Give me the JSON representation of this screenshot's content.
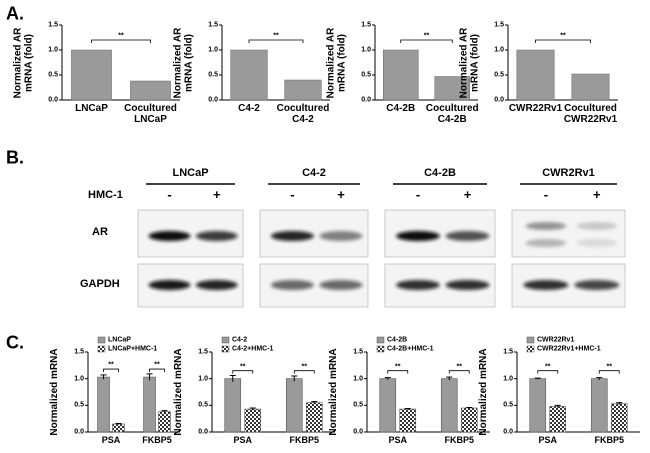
{
  "panels": [
    "A.",
    "B.",
    "C."
  ],
  "chart_data": [
    {
      "type": "bar",
      "ylabel": "Normalized AR\nmRNA (fold)",
      "categories": [
        "LNCaP",
        "Cocultured\nLNCaP"
      ],
      "values": [
        1.0,
        0.38
      ],
      "color": "#9a9a9a",
      "ylim": [
        0,
        1.5
      ],
      "yticks": [
        {
          "value": 0,
          "label": "0.0"
        },
        0.5,
        {
          "value": 1,
          "label": "1.0"
        },
        1.5
      ],
      "annotation": "**"
    },
    {
      "type": "bar",
      "ylabel": "Normalized AR\nmRNA (fold)",
      "categories": [
        "C4-2",
        "Cocultured\nC4-2"
      ],
      "values": [
        1.0,
        0.4
      ],
      "color": "#9a9a9a",
      "ylim": [
        0,
        1.5
      ],
      "yticks": [
        {
          "value": 0,
          "label": "0.0"
        },
        0.5,
        {
          "value": 1,
          "label": "1.0"
        },
        1.5
      ],
      "annotation": "**"
    },
    {
      "type": "bar",
      "ylabel": "Normalized AR\nmRNA (fold)",
      "categories": [
        "C4-2B",
        "Cocultured\nC4-2B"
      ],
      "values": [
        1.0,
        0.47
      ],
      "color": "#9a9a9a",
      "ylim": [
        0,
        1.5
      ],
      "yticks": [
        {
          "value": 0,
          "label": "0.0"
        },
        0.5,
        {
          "value": 1,
          "label": "1.0"
        },
        1.5
      ],
      "annotation": "**"
    },
    {
      "type": "bar",
      "ylabel": "Normalized AR\nmRNA (fold)",
      "categories": [
        "CWR22Rv1",
        "Cocultured\nCWR22Rv1"
      ],
      "values": [
        1.0,
        0.52
      ],
      "color": "#9a9a9a",
      "ylim": [
        0,
        1.5
      ],
      "yticks": [
        {
          "value": 0,
          "label": "0.0"
        },
        0.5,
        {
          "value": 1,
          "label": "1.0"
        },
        1.5
      ],
      "annotation": "**"
    },
    {
      "type": "grouped_bar",
      "ylabel": "Normalized mRNA",
      "categories": [
        "PSA",
        "FKBP5"
      ],
      "series": [
        {
          "name": "LNCaP",
          "color": "#9a9a9a",
          "values": [
            1.03,
            1.03
          ],
          "errors": [
            0.04,
            0.06
          ]
        },
        {
          "name": "LNCaP+HMC-1",
          "color": "#333333",
          "pattern": "checker",
          "values": [
            0.15,
            0.38
          ],
          "errors": [
            0.01,
            0.02
          ]
        }
      ],
      "ylim": [
        0,
        1.5
      ],
      "yticks": [
        {
          "value": 0,
          "label": "0.0"
        },
        0.5,
        {
          "value": 1,
          "label": "1.0"
        },
        1.5
      ],
      "annotations": [
        "**",
        "**"
      ]
    },
    {
      "type": "grouped_bar",
      "ylabel": "Normalized mRNA",
      "categories": [
        "PSA",
        "FKBP5"
      ],
      "series": [
        {
          "name": "C4-2",
          "color": "#9a9a9a",
          "values": [
            1.0,
            1.0
          ],
          "errors": [
            0.06,
            0.05
          ]
        },
        {
          "name": "C4-2+HMC-1",
          "color": "#333333",
          "pattern": "checker",
          "values": [
            0.43,
            0.55
          ],
          "errors": [
            0.02,
            0.02
          ]
        }
      ],
      "ylim": [
        0,
        1.5
      ],
      "yticks": [
        {
          "value": 0,
          "label": "0.0"
        },
        0.5,
        {
          "value": 1,
          "label": "1.0"
        },
        1.5
      ],
      "annotations": [
        "**",
        "**"
      ]
    },
    {
      "type": "grouped_bar",
      "ylabel": "Normalized mRNA",
      "categories": [
        "PSA",
        "FKBP5"
      ],
      "series": [
        {
          "name": "C4-2B",
          "color": "#9a9a9a",
          "values": [
            1.0,
            1.0
          ],
          "errors": [
            0.02,
            0.03
          ]
        },
        {
          "name": "C4-2B+HMC-1",
          "color": "#333333",
          "pattern": "checker",
          "values": [
            0.43,
            0.45
          ],
          "errors": [
            0.01,
            0.01
          ]
        }
      ],
      "ylim": [
        0,
        1.5
      ],
      "yticks": [
        {
          "value": 0,
          "label": "0.0"
        },
        0.5,
        {
          "value": 1,
          "label": "1.0"
        },
        1.5
      ],
      "annotations": [
        "**",
        "**"
      ]
    },
    {
      "type": "grouped_bar",
      "ylabel": "Normalized mRNA",
      "categories": [
        "PSA",
        "FKBP5"
      ],
      "series": [
        {
          "name": "CWR22Rv1",
          "color": "#9a9a9a",
          "values": [
            1.0,
            1.0
          ],
          "errors": [
            0.01,
            0.02
          ]
        },
        {
          "name": "CWR22Rv1+HMC-1",
          "color": "#333333",
          "pattern": "checker",
          "values": [
            0.48,
            0.53
          ],
          "errors": [
            0.02,
            0.02
          ]
        }
      ],
      "ylim": [
        0,
        1.5
      ],
      "yticks": [
        {
          "value": 0,
          "label": "0.0"
        },
        0.5,
        {
          "value": 1,
          "label": "1.0"
        },
        1.5
      ],
      "annotations": [
        "**",
        "**"
      ]
    }
  ],
  "blot": {
    "treatment_label": "HMC-1",
    "row_labels": [
      "AR",
      "GAPDH"
    ],
    "groups": [
      {
        "name": "LNCaP",
        "lanes": [
          "-",
          "+"
        ]
      },
      {
        "name": "C4-2",
        "lanes": [
          "-",
          "+"
        ]
      },
      {
        "name": "C4-2B",
        "lanes": [
          "-",
          "+"
        ]
      },
      {
        "name": "CWR2Rv1",
        "lanes": [
          "-",
          "+"
        ]
      }
    ]
  }
}
